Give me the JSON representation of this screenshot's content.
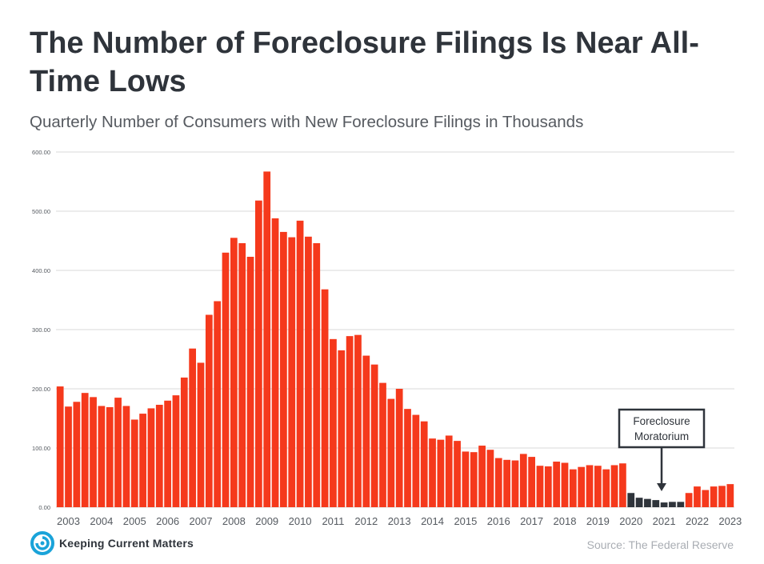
{
  "title": "The Number of Foreclosure Filings Is Near All-Time Lows",
  "subtitle": "Quarterly Number of Consumers with New Foreclosure Filings in Thousands",
  "source": "Source: The Federal Reserve",
  "brand": {
    "name": "Keeping Current Matters",
    "icon": "kcm-swirl-logo-icon"
  },
  "colors": {
    "bar": "#f5391c",
    "moratorium_bar": "#2f343b",
    "grid": "#d9d9d9",
    "axis_text": "#555a60",
    "title": "#2f343b"
  },
  "chart_data": {
    "type": "bar",
    "title": "The Number of Foreclosure Filings Is Near All-Time Lows",
    "subtitle": "Quarterly Number of Consumers with New Foreclosure Filings in Thousands",
    "xlabel": "",
    "ylabel": "",
    "ylim": [
      0,
      600
    ],
    "yticks": [
      0,
      100,
      200,
      300,
      400,
      500,
      600
    ],
    "ytick_labels": [
      "0.00",
      "100.00",
      "200.00",
      "300.00",
      "400.00",
      "500.00",
      "600.00"
    ],
    "grid": true,
    "year_labels": [
      "2003",
      "2004",
      "2005",
      "2006",
      "2007",
      "2008",
      "2009",
      "2010",
      "2011",
      "2012",
      "2013",
      "2014",
      "2015",
      "2016",
      "2017",
      "2018",
      "2019",
      "2020",
      "2021",
      "2022",
      "2023"
    ],
    "values": [
      204,
      170,
      178,
      193,
      186,
      171,
      169,
      185,
      171,
      148,
      158,
      167,
      173,
      180,
      189,
      219,
      268,
      244,
      325,
      348,
      430,
      455,
      446,
      423,
      518,
      567,
      488,
      465,
      456,
      484,
      457,
      446,
      368,
      284,
      265,
      289,
      291,
      256,
      241,
      210,
      183,
      200,
      166,
      156,
      145,
      116,
      114,
      121,
      112,
      94,
      93,
      104,
      97,
      83,
      80,
      79,
      90,
      85,
      70,
      69,
      77,
      75,
      64,
      68,
      71,
      70,
      64,
      71,
      74,
      24,
      16,
      14,
      12,
      8,
      9,
      9,
      24,
      35,
      29,
      35,
      36,
      39
    ],
    "moratorium": {
      "start_index": 69,
      "end_index": 75
    },
    "annotations": [
      {
        "text_lines": [
          "Foreclosure",
          "Moratorium"
        ]
      }
    ]
  }
}
